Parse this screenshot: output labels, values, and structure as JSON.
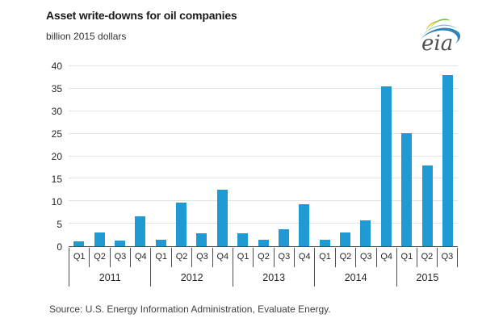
{
  "header": {
    "title": "Asset write-downs for oil companies",
    "subtitle": "billion 2015 dollars",
    "logo": {
      "text": "eia",
      "text_color": "#4f5052",
      "arc_blue": "#2e83b9",
      "swoosh_light_blue": "#7ec4e0",
      "leaf_green": "#7fbc42",
      "leaf_yellow": "#e9c417"
    }
  },
  "chart_data": {
    "type": "bar",
    "title": "Asset write-downs for oil companies",
    "ylabel": "billion 2015 dollars",
    "xlabel": "",
    "ylim": [
      0,
      40
    ],
    "ytick_interval": 5,
    "yticks": [
      0,
      5,
      10,
      15,
      20,
      25,
      30,
      35,
      40
    ],
    "grid": "horizontal",
    "legend": "none",
    "bar_color": "#1f9ad2",
    "year_groups": [
      {
        "year": "2011",
        "quarters": [
          "Q1",
          "Q2",
          "Q3",
          "Q4"
        ],
        "values": [
          1.0,
          3.1,
          1.3,
          6.7
        ]
      },
      {
        "year": "2012",
        "quarters": [
          "Q1",
          "Q2",
          "Q3",
          "Q4"
        ],
        "values": [
          1.4,
          9.6,
          2.9,
          12.6
        ]
      },
      {
        "year": "2013",
        "quarters": [
          "Q1",
          "Q2",
          "Q3",
          "Q4"
        ],
        "values": [
          2.8,
          1.5,
          3.7,
          9.3
        ]
      },
      {
        "year": "2014",
        "quarters": [
          "Q1",
          "Q2",
          "Q3",
          "Q4"
        ],
        "values": [
          1.4,
          3.1,
          5.8,
          35.6
        ]
      },
      {
        "year": "2015",
        "quarters": [
          "Q1",
          "Q2",
          "Q3"
        ],
        "values": [
          25.2,
          18.0,
          38.1
        ]
      }
    ]
  },
  "footer": {
    "source": "Source:  U.S. Energy Information Administration, Evaluate Energy."
  }
}
